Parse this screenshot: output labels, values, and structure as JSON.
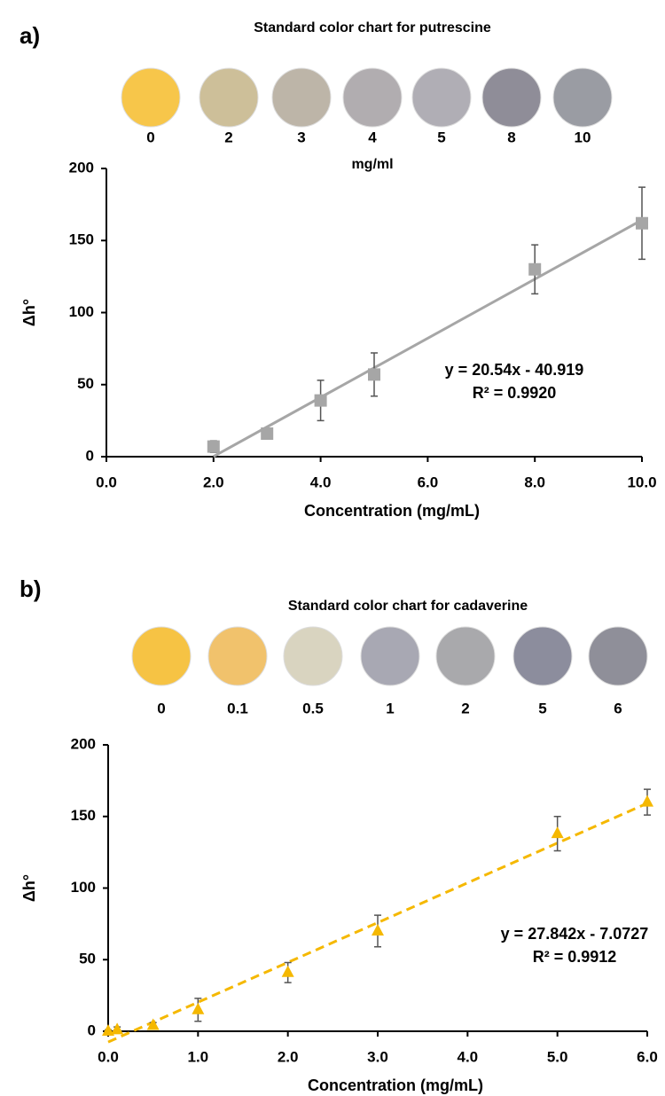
{
  "chart_data": [
    {
      "type": "scatter",
      "panel_label": "a)",
      "swatch_title": "Standard color chart for putrescine",
      "swatch_labels": [
        "0",
        "2",
        "3",
        "4",
        "5",
        "8",
        "10"
      ],
      "swatch_unit": "mg/ml",
      "swatch_colors": [
        "#f7c64a",
        "#cdbf99",
        "#bdb5a8",
        "#b1adb0",
        "#b0aeb5",
        "#8f8d98",
        "#9a9ca3"
      ],
      "x": [
        2,
        3,
        4,
        5,
        8,
        10
      ],
      "series": [
        {
          "color": "#a6a6a6",
          "marker": "square",
          "values": [
            7,
            16,
            39,
            57,
            130,
            162
          ],
          "errors": [
            4,
            2,
            14,
            15,
            17,
            25
          ]
        }
      ],
      "trendline": {
        "style": "solid"
      },
      "equation": [
        "y = 20.54x - 40.919",
        "R² = 0.9920"
      ],
      "xlabel": "Concentration (mg/mL)",
      "ylabel": "Δh°",
      "xlim": [
        0,
        10
      ],
      "xticks": [
        {
          "value": 0,
          "label": "0.0"
        },
        {
          "value": 2,
          "label": "2.0"
        },
        {
          "value": 4,
          "label": "4.0"
        },
        {
          "value": 6,
          "label": "6.0"
        },
        {
          "value": 8,
          "label": "8.0"
        },
        {
          "value": 10,
          "label": "10.0"
        }
      ],
      "ylim": [
        0,
        200
      ],
      "yticks": [
        0,
        50,
        100,
        150,
        200
      ]
    },
    {
      "type": "scatter",
      "panel_label": "b)",
      "swatch_title": "Standard color chart for cadaverine",
      "swatch_labels": [
        "0",
        "0.1",
        "0.5",
        "1",
        "2",
        "5",
        "6"
      ],
      "swatch_colors": [
        "#f6c344",
        "#f1c26c",
        "#d9d4c0",
        "#a8a8b3",
        "#a9a9ac",
        "#8c8d9d",
        "#8f8f99"
      ],
      "x": [
        0,
        0.1,
        0.5,
        1,
        2,
        3,
        5,
        6
      ],
      "series": [
        {
          "color": "#f5b800",
          "marker": "triangle",
          "values": [
            0,
            1,
            4,
            15,
            41,
            70,
            138,
            160
          ],
          "errors": [
            1,
            2,
            2,
            8,
            7,
            11,
            12,
            9
          ]
        }
      ],
      "trendline": {
        "style": "dashed"
      },
      "equation": [
        "y = 27.842x - 7.0727",
        "R² = 0.9912"
      ],
      "xlabel": "Concentration (mg/mL)",
      "ylabel": "Δh°",
      "xlim": [
        0,
        6
      ],
      "xticks": [
        {
          "value": 0,
          "label": "0.0"
        },
        {
          "value": 1,
          "label": "1.0"
        },
        {
          "value": 2,
          "label": "2.0"
        },
        {
          "value": 3,
          "label": "3.0"
        },
        {
          "value": 4,
          "label": "4.0"
        },
        {
          "value": 5,
          "label": "5.0"
        },
        {
          "value": 6,
          "label": "6.0"
        }
      ],
      "ylim": [
        0,
        200
      ],
      "yticks": [
        0,
        50,
        100,
        150,
        200
      ]
    }
  ]
}
